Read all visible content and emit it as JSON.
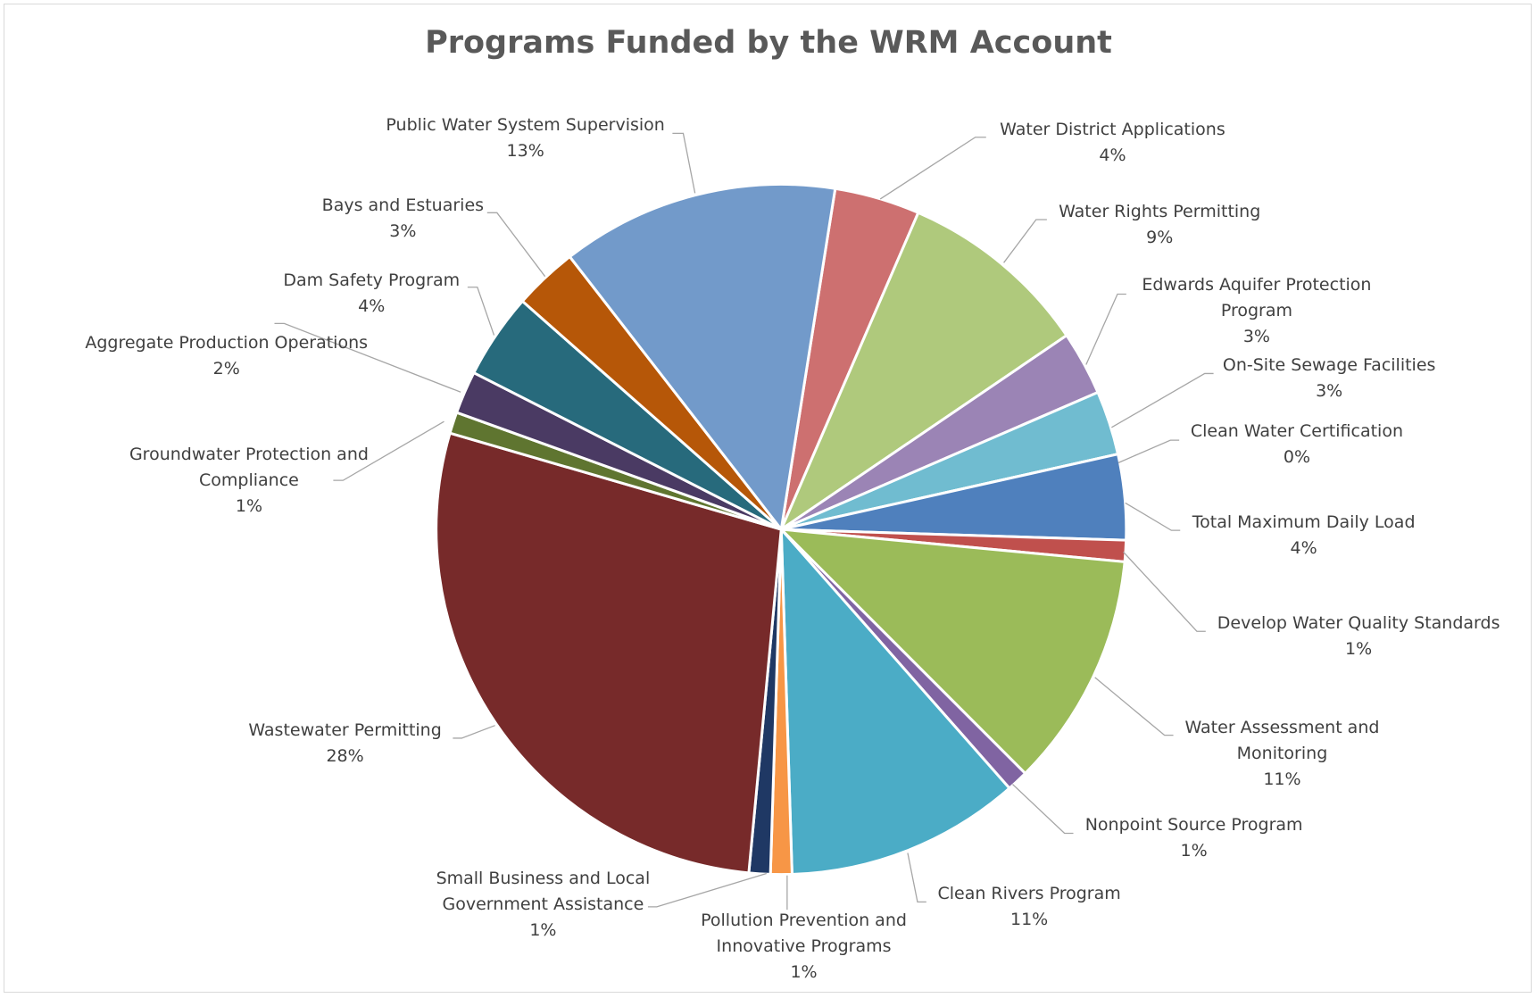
{
  "chart_data": {
    "type": "pie",
    "title": "Programs Funded by the WRM Account",
    "categories": [
      "Water District Applications",
      "Water Rights Permitting",
      "Edwards Aquifer Protection Program",
      "On-Site Sewage Facilities",
      "Clean Water Certification",
      "Total Maximum Daily Load",
      "Develop Water Quality Standards",
      "Water Assessment and Monitoring",
      "Nonpoint Source Program",
      "Clean Rivers Program",
      "Pollution Prevention and Innovative Programs",
      "Small Business and Local Government Assistance",
      "Wastewater Permitting",
      "Groundwater Protection and Compliance",
      "Aggregate Production Operations",
      "Dam Safety Program",
      "Bays and Estuaries",
      "Public Water System Supervision"
    ],
    "values": [
      4,
      9,
      3,
      3,
      0,
      4,
      1,
      11,
      1,
      11,
      1,
      1,
      28,
      1,
      2,
      4,
      3,
      13
    ],
    "value_labels": [
      "4%",
      "9%",
      "3%",
      "3%",
      "0%",
      "4%",
      "1%",
      "11%",
      "1%",
      "11%",
      "1%",
      "1%",
      "28%",
      "1%",
      "2%",
      "4%",
      "3%",
      "13%"
    ],
    "colors": [
      "#cd7070",
      "#afc97c",
      "#9b84b5",
      "#70bcd0",
      "#f5a14c",
      "#4f80bd",
      "#c0504d",
      "#9bbb59",
      "#8064a2",
      "#4bacc6",
      "#f79646",
      "#1f3864",
      "#772a2a",
      "#5f7530",
      "#4a3a63",
      "#276a7c",
      "#b65708",
      "#729aca"
    ]
  }
}
